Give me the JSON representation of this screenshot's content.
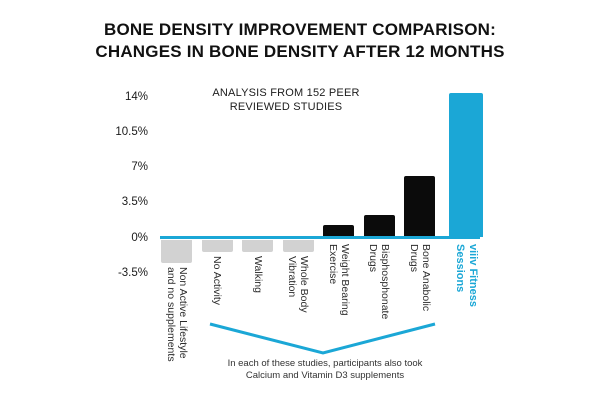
{
  "title": {
    "line1": "BONE DENSITY IMPROVEMENT COMPARISON:",
    "line2": "CHANGES IN BONE DENSITY AFTER 12 MONTHS"
  },
  "annotations": {
    "studies_note": "ANALYSIS FROM 152 PEER\nREVIEWED STUDIES",
    "supplements_note": "In each of these studies, participants also took\nCalcium and Vitamin D3 supplements"
  },
  "chart_data": {
    "type": "bar",
    "title": "BONE DENSITY IMPROVEMENT COMPARISON: CHANGES IN BONE DENSITY AFTER 12 MONTHS",
    "subtitle": "ANALYSIS FROM 152 PEER REVIEWED STUDIES",
    "categories": [
      "Non Active Lifestyle\nand no supplements",
      "No Activity",
      "Walking",
      "Whole Body\nVibration",
      "Weight Bearing\nExercise",
      "Bisphosphonate\nDrugs",
      "Bone Anabolic\nDrugs",
      "viiiv Fitness\nSessions"
    ],
    "values": [
      -2.5,
      -1.4,
      -1.4,
      -1.4,
      1.2,
      2.2,
      6.1,
      14.4
    ],
    "unit": "%",
    "bar_colors": [
      "#d2d2d2",
      "#d2d2d2",
      "#d2d2d2",
      "#d2d2d2",
      "#0b0b0b",
      "#0b0b0b",
      "#0b0b0b",
      "#1ba7d6"
    ],
    "highlight_index": 7,
    "highlight_color": "#1ba7d6",
    "negative_color": "#d2d2d2",
    "positive_color": "#0b0b0b",
    "axis_line_color": "#1ba7d6",
    "yticks": [
      {
        "label": "14%",
        "value": 14
      },
      {
        "label": "10.5%",
        "value": 10.5
      },
      {
        "label": "7%",
        "value": 7
      },
      {
        "label": "3.5%",
        "value": 3.5
      },
      {
        "label": "0%",
        "value": 0
      },
      {
        "label": "-3.5%",
        "value": -3.5
      }
    ],
    "ylim": [
      -3.5,
      14.5
    ],
    "grid": false,
    "legend": false,
    "bracket_covers": [
      "No Activity",
      "Walking",
      "Whole Body Vibration",
      "Weight Bearing Exercise",
      "Bisphosphonate Drugs",
      "Bone Anabolic Drugs"
    ]
  }
}
